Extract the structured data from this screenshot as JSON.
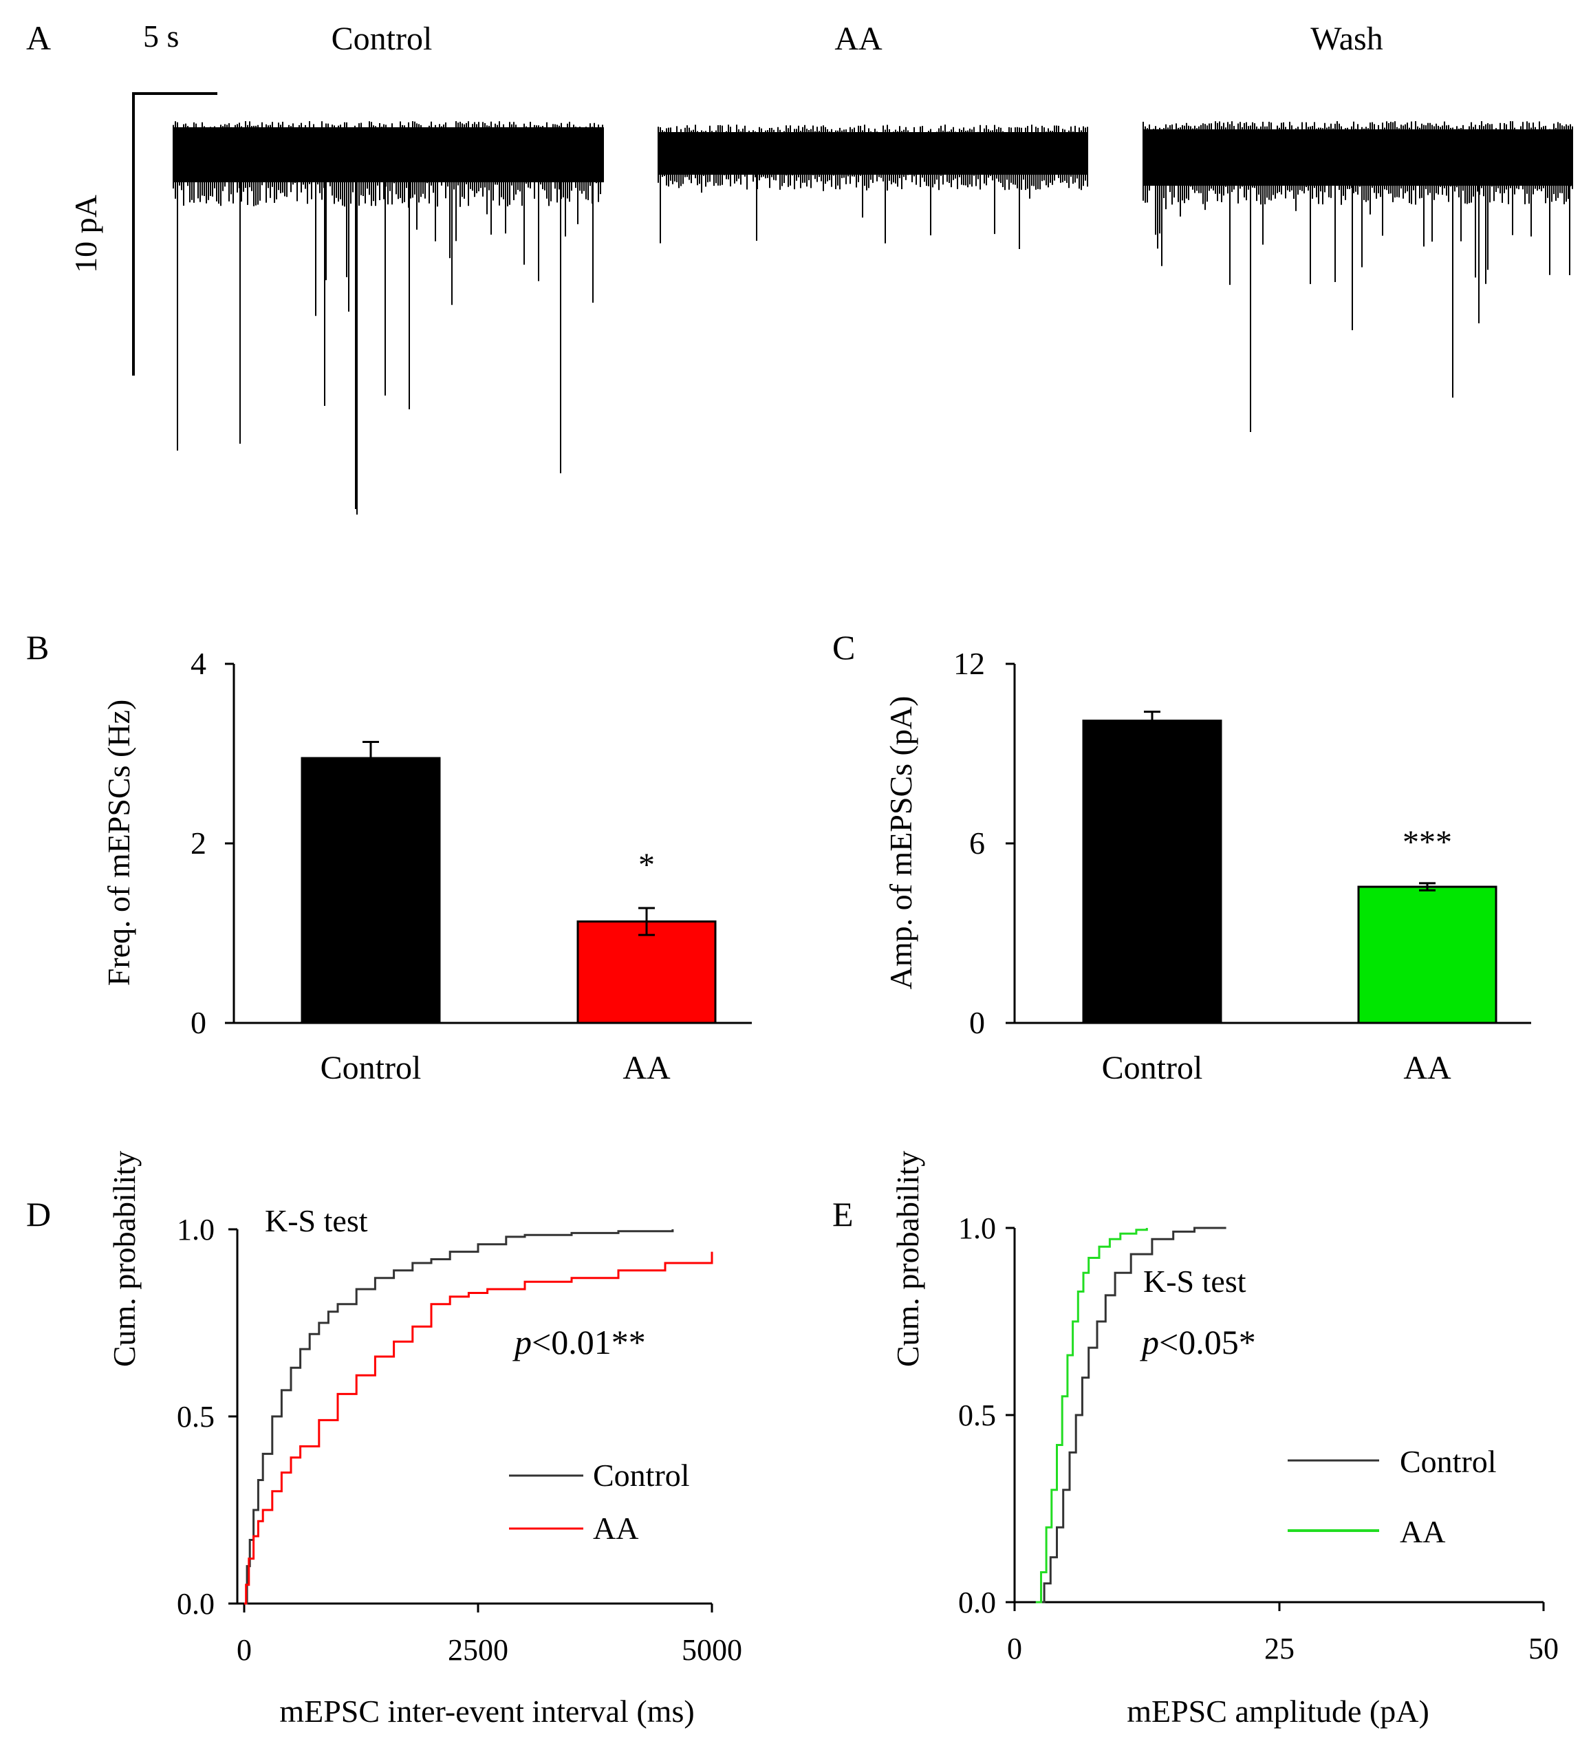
{
  "panel_letters": {
    "a": "A",
    "b": "B",
    "c": "C",
    "d": "D",
    "e": "E"
  },
  "panel_a": {
    "scale_time": "5 s",
    "scale_current": "10 pA",
    "conditions": [
      "Control",
      "AA",
      "Wash"
    ]
  },
  "chart_data": [
    {
      "panel": "B",
      "type": "bar",
      "title": "",
      "xlabel": "",
      "ylabel": "Freq. of mEPSCs (Hz)",
      "categories": [
        "Control",
        "AA"
      ],
      "values": [
        2.95,
        1.13
      ],
      "errors": [
        0.18,
        0.15
      ],
      "colors": [
        "#000000",
        "#ff0000"
      ],
      "ylim": [
        0,
        4
      ],
      "yticks": [
        "0",
        "2",
        "4"
      ],
      "annotations": [
        "",
        "*"
      ]
    },
    {
      "panel": "C",
      "type": "bar",
      "title": "",
      "xlabel": "",
      "ylabel": "Amp. of mEPSCs (pA)",
      "categories": [
        "Control",
        "AA"
      ],
      "values": [
        10.1,
        4.55
      ],
      "errors": [
        0.3,
        0.12
      ],
      "colors": [
        "#000000",
        "#00e600"
      ],
      "ylim": [
        0,
        12
      ],
      "yticks": [
        "0",
        "6",
        "12"
      ],
      "annotations": [
        "",
        "***"
      ]
    },
    {
      "panel": "D",
      "type": "line",
      "title": "",
      "xlabel": "mEPSC inter-event interval (ms)",
      "ylabel": "Cum. probability",
      "xlim": [
        0,
        5000
      ],
      "ylim": [
        0,
        1
      ],
      "xticks": [
        "0",
        "2500",
        "5000"
      ],
      "yticks": [
        "0.0",
        "0.5",
        "1.0"
      ],
      "test_label": "K-S test",
      "p_label": "p",
      "p_value": "<0.01**",
      "legend_position": "right",
      "series": [
        {
          "name": "Control",
          "color": "#333333",
          "x": [
            0,
            30,
            60,
            100,
            150,
            200,
            300,
            400,
            500,
            600,
            700,
            800,
            900,
            1000,
            1200,
            1400,
            1600,
            1800,
            2000,
            2200,
            2500,
            2800,
            3000,
            3500,
            4000,
            4580
          ],
          "y": [
            0,
            0.1,
            0.17,
            0.25,
            0.33,
            0.4,
            0.5,
            0.57,
            0.63,
            0.68,
            0.72,
            0.75,
            0.78,
            0.8,
            0.84,
            0.87,
            0.89,
            0.91,
            0.92,
            0.94,
            0.96,
            0.98,
            0.985,
            0.99,
            0.995,
            1.0
          ]
        },
        {
          "name": "AA",
          "color": "#ff0000",
          "x": [
            0,
            20,
            50,
            100,
            150,
            200,
            300,
            400,
            500,
            600,
            800,
            1000,
            1200,
            1400,
            1600,
            1800,
            2000,
            2200,
            2400,
            2600,
            3000,
            3500,
            4000,
            4500,
            5000
          ],
          "y": [
            0,
            0.05,
            0.12,
            0.18,
            0.22,
            0.25,
            0.3,
            0.35,
            0.39,
            0.42,
            0.49,
            0.56,
            0.61,
            0.66,
            0.7,
            0.74,
            0.8,
            0.82,
            0.83,
            0.84,
            0.86,
            0.87,
            0.89,
            0.91,
            0.94
          ]
        }
      ]
    },
    {
      "panel": "E",
      "type": "line",
      "title": "",
      "xlabel": "mEPSC amplitude (pA)",
      "ylabel": "Cum. probability",
      "xlim": [
        0,
        50
      ],
      "ylim": [
        0,
        1
      ],
      "xticks": [
        "0",
        "25",
        "50"
      ],
      "yticks": [
        "0.0",
        "0.5",
        "1.0"
      ],
      "test_label": "K-S test",
      "p_label": "p",
      "p_value": "<0.05*",
      "legend_position": "right",
      "series": [
        {
          "name": "Control",
          "color": "#333333",
          "x": [
            2.2,
            2.8,
            3.4,
            4.0,
            4.6,
            5.2,
            5.8,
            6.4,
            7.0,
            7.8,
            8.6,
            9.5,
            11.0,
            13.0,
            15.0,
            17.0,
            20.0
          ],
          "y": [
            0.0,
            0.05,
            0.12,
            0.2,
            0.3,
            0.4,
            0.5,
            0.6,
            0.68,
            0.75,
            0.82,
            0.88,
            0.93,
            0.97,
            0.99,
            1.0,
            1.0
          ]
        },
        {
          "name": "AA",
          "color": "#22dd22",
          "x": [
            2.0,
            2.5,
            3.0,
            3.5,
            4.0,
            4.5,
            5.0,
            5.5,
            6.0,
            6.5,
            7.0,
            8.0,
            9.0,
            10.0,
            11.5,
            12.5
          ],
          "y": [
            0.0,
            0.08,
            0.2,
            0.3,
            0.42,
            0.55,
            0.66,
            0.75,
            0.83,
            0.88,
            0.92,
            0.95,
            0.97,
            0.985,
            0.995,
            1.0
          ]
        }
      ]
    }
  ]
}
